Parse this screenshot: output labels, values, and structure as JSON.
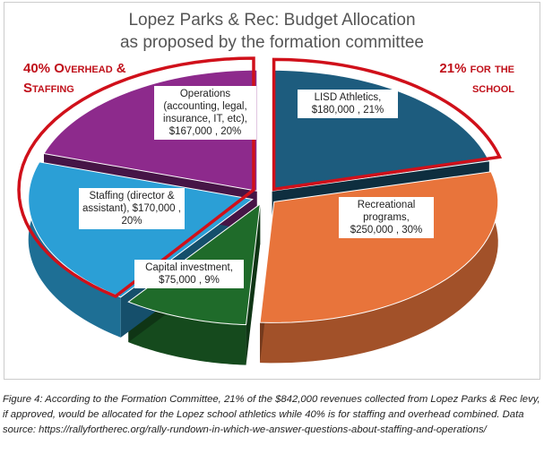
{
  "chart_data": {
    "type": "pie",
    "title": "Lopez Parks & Rec: Budget Allocation",
    "subtitle": "as proposed by the formation committee",
    "slices": [
      {
        "name": "LISD Athletics",
        "amount": "$180,000",
        "percent": 21,
        "label": "LISD Athletics, $180,000 , 21%",
        "color": "#1d5c7e"
      },
      {
        "name": "Recreational programs",
        "amount": "$250,000",
        "percent": 30,
        "label": "Recreational programs, $250,000 , 30%",
        "color": "#e8743b"
      },
      {
        "name": "Capital investment",
        "amount": "$75,000",
        "percent": 9,
        "label": "Capital investment, $75,000 , 9%",
        "color": "#1f6b2a"
      },
      {
        "name": "Staffing (director & assistant)",
        "amount": "$170,000",
        "percent": 20,
        "label": "Staffing (director & assistant), $170,000 , 20%",
        "color": "#2b9fd6"
      },
      {
        "name": "Operations (accounting, legal, insurance, IT, etc)",
        "amount": "$167,000",
        "percent": 20,
        "label": "Operations (accounting, legal, insurance, IT, etc), $167,000 , 20%",
        "color": "#8d2a8c"
      }
    ],
    "annotations": [
      "40% Overhead & Staffing",
      "21% for the school"
    ]
  },
  "caption": "Figure 4: According to the Formation Committee, 21% of the $842,000 revenues collected from Lopez Parks & Rec levy, if approved, would be allocated for the Lopez school athletics while 40% is for staffing and overhead combined. Data source: https://rallyfortherec.org/rally-rundown-in-which-we-answer-questions-about-staffing-and-operations/"
}
